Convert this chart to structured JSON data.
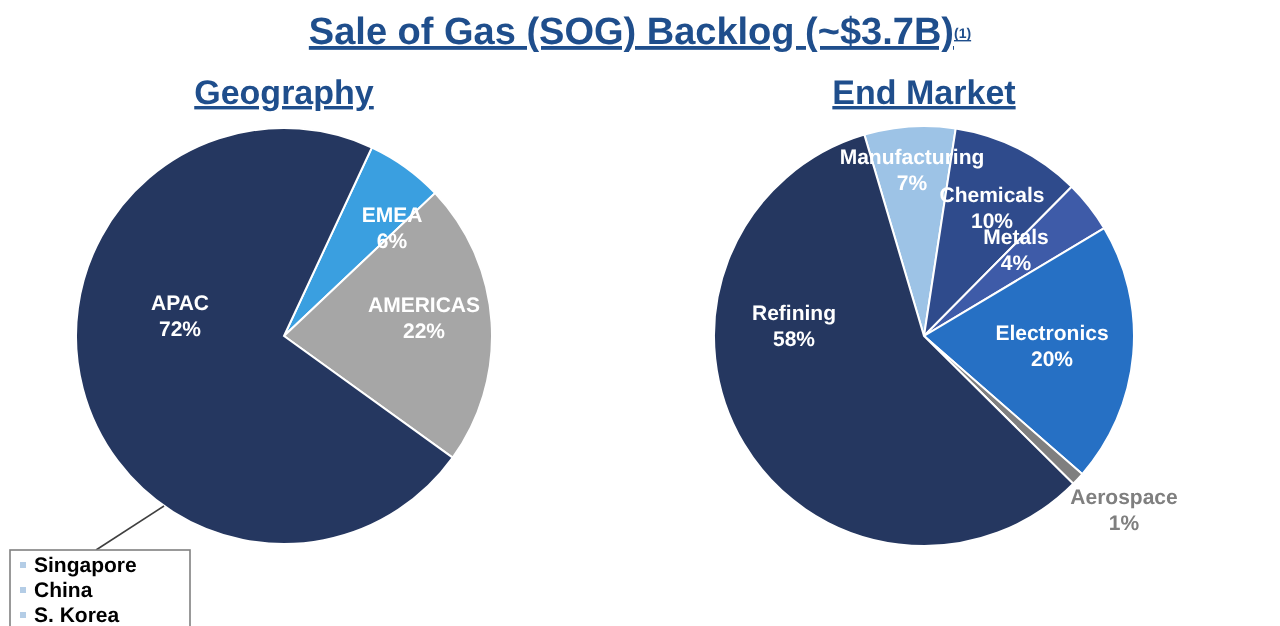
{
  "chart_data": [
    {
      "type": "pie",
      "title": "Sale of Gas (SOG) Backlog (~$3.7B)$^{(1)}$",
      "subtitle": "Geography",
      "categories": [
        "EMEA",
        "AMERICAS",
        "APAC"
      ],
      "values": [
        6,
        22,
        72
      ],
      "colors": [
        "#3a9fe0",
        "#a6a6a6",
        "#253760"
      ],
      "value_labels": [
        "6%",
        "22%",
        "72%"
      ],
      "legend": false,
      "annotations": [
        "Singapore",
        "China",
        "S. Korea"
      ]
    },
    {
      "type": "pie",
      "title": "End Market",
      "categories": [
        "Manufacturing",
        "Chemicals",
        "Metals",
        "Electronics",
        "Aerospace",
        "Refining"
      ],
      "values": [
        7,
        10,
        4,
        20,
        1,
        58
      ],
      "colors": [
        "#9dc3e6",
        "#2f4b8c",
        "#3e5ba8",
        "#2670c4",
        "#7f7f7f",
        "#253760"
      ],
      "value_labels": [
        "7%",
        "10%",
        "4%",
        "20%",
        "1%",
        "58%"
      ],
      "legend": false
    }
  ]
}
